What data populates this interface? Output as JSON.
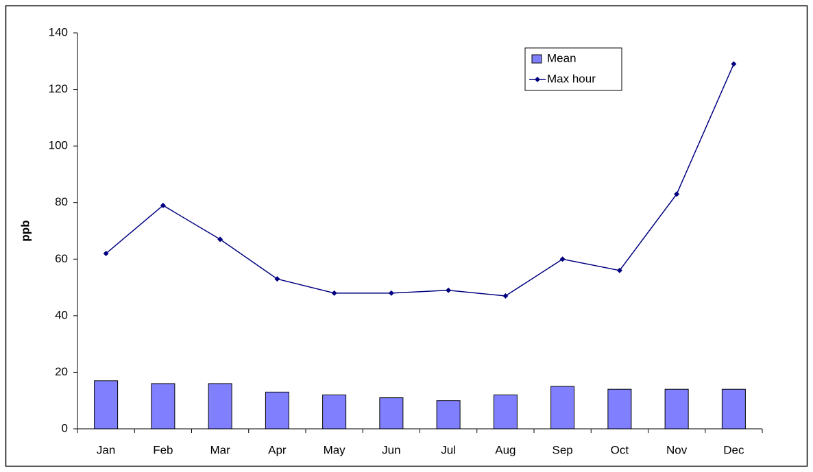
{
  "chart_data": {
    "type": "bar",
    "y_label": "ppb",
    "categories": [
      "Jan",
      "Feb",
      "Mar",
      "Apr",
      "May",
      "Jun",
      "Jul",
      "Aug",
      "Sep",
      "Oct",
      "Nov",
      "Dec"
    ],
    "series": [
      {
        "name": "Mean",
        "type": "bar",
        "color": "#8080ff",
        "values": [
          17,
          16,
          16,
          13,
          12,
          11,
          10,
          12,
          15,
          14,
          14,
          14
        ]
      },
      {
        "name": "Max hour",
        "type": "line",
        "color": "#000080",
        "values": [
          62,
          79,
          67,
          53,
          48,
          48,
          49,
          47,
          60,
          56,
          83,
          129
        ]
      }
    ],
    "ylim": [
      0,
      140
    ],
    "yticks": [
      0,
      20,
      40,
      60,
      80,
      100,
      120,
      140
    ],
    "grid": false,
    "legend": "upper right"
  }
}
